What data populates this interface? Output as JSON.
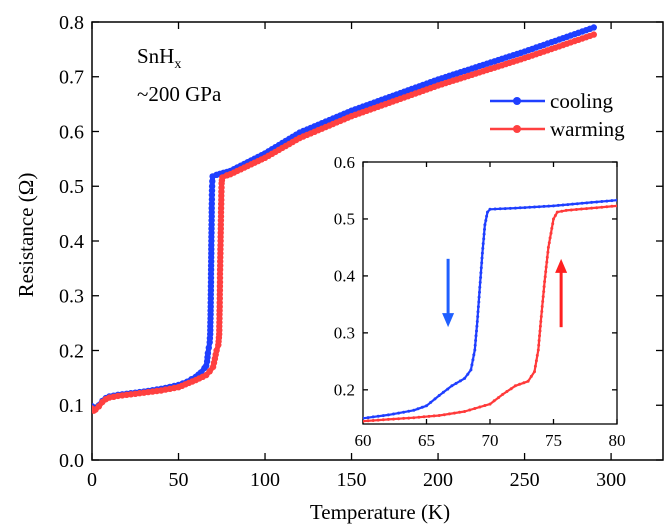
{
  "chart_data": [
    {
      "type": "scatter",
      "xlabel": "Temperature (K)",
      "ylabel": "Resistance (Ω)",
      "xlim": [
        0,
        330
      ],
      "ylim": [
        0.0,
        0.8
      ],
      "xticks": [
        "0",
        "50",
        "100",
        "150",
        "200",
        "250",
        "300"
      ],
      "yticks": [
        "0.0",
        "0.1",
        "0.2",
        "0.3",
        "0.4",
        "0.5",
        "0.6",
        "0.7",
        "0.8"
      ],
      "annotation": {
        "formula_base": "SnH",
        "formula_sub": "x",
        "pressure": "~200 GPa"
      },
      "legend_placement": "top-right",
      "series": [
        {
          "name": "cooling",
          "color": "#1f3fff",
          "points": [
            [
              0,
              0.098
            ],
            [
              1,
              0.092
            ],
            [
              2,
              0.094
            ],
            [
              4,
              0.1
            ],
            [
              6,
              0.108
            ],
            [
              8,
              0.113
            ],
            [
              10,
              0.116
            ],
            [
              15,
              0.119
            ],
            [
              20,
              0.121
            ],
            [
              30,
              0.125
            ],
            [
              40,
              0.13
            ],
            [
              50,
              0.137
            ],
            [
              55,
              0.143
            ],
            [
              60,
              0.152
            ],
            [
              63,
              0.16
            ],
            [
              65,
              0.168
            ],
            [
              66,
              0.172
            ],
            [
              66.5,
              0.18
            ],
            [
              67,
              0.195
            ],
            [
              67.5,
              0.205
            ],
            [
              68,
              0.215
            ],
            [
              68.3,
              0.23
            ],
            [
              68.6,
              0.28
            ],
            [
              68.8,
              0.34
            ],
            [
              69,
              0.4
            ],
            [
              69.2,
              0.46
            ],
            [
              69.4,
              0.5
            ],
            [
              69.7,
              0.518
            ],
            [
              72,
              0.521
            ],
            [
              80,
              0.528
            ],
            [
              100,
              0.56
            ],
            [
              120,
              0.598
            ],
            [
              150,
              0.638
            ],
            [
              200,
              0.695
            ],
            [
              250,
              0.746
            ],
            [
              290,
              0.79
            ]
          ]
        },
        {
          "name": "warming",
          "color": "#ff4040",
          "points": [
            [
              0,
              0.094
            ],
            [
              1,
              0.09
            ],
            [
              2,
              0.092
            ],
            [
              4,
              0.098
            ],
            [
              6,
              0.106
            ],
            [
              8,
              0.111
            ],
            [
              10,
              0.114
            ],
            [
              15,
              0.117
            ],
            [
              20,
              0.119
            ],
            [
              30,
              0.123
            ],
            [
              40,
              0.127
            ],
            [
              50,
              0.133
            ],
            [
              60,
              0.146
            ],
            [
              66,
              0.155
            ],
            [
              68,
              0.162
            ],
            [
              70,
              0.17
            ],
            [
              71,
              0.185
            ],
            [
              72,
              0.2
            ],
            [
              73,
              0.21
            ],
            [
              73.5,
              0.23
            ],
            [
              73.8,
              0.28
            ],
            [
              74,
              0.34
            ],
            [
              74.3,
              0.4
            ],
            [
              74.6,
              0.46
            ],
            [
              74.9,
              0.505
            ],
            [
              75.3,
              0.516
            ],
            [
              78,
              0.52
            ],
            [
              80,
              0.522
            ],
            [
              100,
              0.552
            ],
            [
              120,
              0.588
            ],
            [
              150,
              0.628
            ],
            [
              200,
              0.684
            ],
            [
              250,
              0.734
            ],
            [
              290,
              0.777
            ]
          ]
        }
      ]
    },
    {
      "type": "line",
      "role": "inset",
      "xlim": [
        60,
        80
      ],
      "ylim": [
        0.14,
        0.6
      ],
      "xticks": [
        "60",
        "65",
        "70",
        "75",
        "80"
      ],
      "yticks": [
        "0.2",
        "0.3",
        "0.4",
        "0.5",
        "0.6"
      ],
      "arrows": [
        {
          "direction": "down",
          "color": "#1f5fff",
          "x": 66.7,
          "y_from": 0.43,
          "y_to": 0.31
        },
        {
          "direction": "up",
          "color": "#ff2020",
          "x": 75.6,
          "y_from": 0.31,
          "y_to": 0.43
        }
      ],
      "series": [
        {
          "name": "cooling",
          "color": "#1f3fff",
          "points": [
            [
              60,
              0.15
            ],
            [
              62,
              0.156
            ],
            [
              64,
              0.164
            ],
            [
              65,
              0.172
            ],
            [
              66,
              0.19
            ],
            [
              67,
              0.207
            ],
            [
              68,
              0.22
            ],
            [
              68.5,
              0.235
            ],
            [
              68.8,
              0.27
            ],
            [
              69,
              0.32
            ],
            [
              69.2,
              0.38
            ],
            [
              69.4,
              0.44
            ],
            [
              69.6,
              0.49
            ],
            [
              69.8,
              0.512
            ],
            [
              70,
              0.517
            ],
            [
              72,
              0.519
            ],
            [
              75,
              0.523
            ],
            [
              78,
              0.529
            ],
            [
              80,
              0.533
            ]
          ]
        },
        {
          "name": "warming",
          "color": "#ff3a3a",
          "points": [
            [
              60,
              0.145
            ],
            [
              62,
              0.148
            ],
            [
              64,
              0.151
            ],
            [
              66,
              0.155
            ],
            [
              68,
              0.162
            ],
            [
              70,
              0.175
            ],
            [
              71,
              0.192
            ],
            [
              72,
              0.207
            ],
            [
              73,
              0.215
            ],
            [
              73.5,
              0.232
            ],
            [
              73.8,
              0.27
            ],
            [
              74,
              0.32
            ],
            [
              74.3,
              0.39
            ],
            [
              74.6,
              0.45
            ],
            [
              75,
              0.5
            ],
            [
              75.3,
              0.512
            ],
            [
              76,
              0.515
            ],
            [
              78,
              0.519
            ],
            [
              80,
              0.523
            ]
          ]
        }
      ]
    }
  ]
}
